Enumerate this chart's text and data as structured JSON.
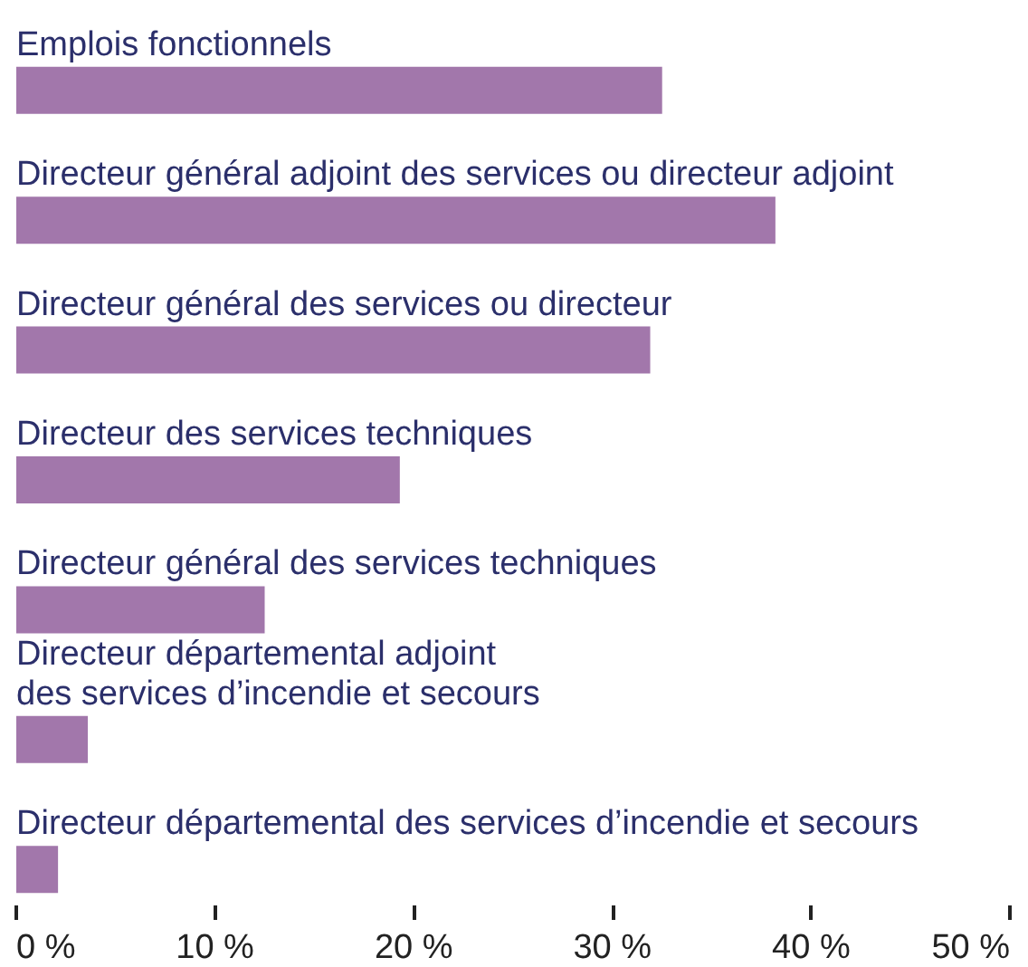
{
  "chart_data": {
    "type": "bar",
    "orientation": "horizontal",
    "categories": [
      "Emplois fonctionnels",
      "Directeur général adjoint des services ou directeur adjoint",
      "Directeur général des services ou directeur",
      "Directeur des services techniques",
      "Directeur général des services techniques",
      "Directeur départemental adjoint\ndes services d’incendie et secours",
      "Directeur départemental des services d’incendie et secours"
    ],
    "values": [
      32.5,
      38.2,
      31.9,
      19.3,
      12.5,
      3.6,
      2.1
    ],
    "color": "#a277ab",
    "xlim": [
      0,
      50
    ],
    "xticks": [
      {
        "value": 0,
        "label": "0 %"
      },
      {
        "value": 10,
        "label": "10 %"
      },
      {
        "value": 20,
        "label": "20 %"
      },
      {
        "value": 30,
        "label": "30 %"
      },
      {
        "value": 40,
        "label": "40 %"
      },
      {
        "value": 50,
        "label": "50 %"
      }
    ],
    "grid": false
  }
}
